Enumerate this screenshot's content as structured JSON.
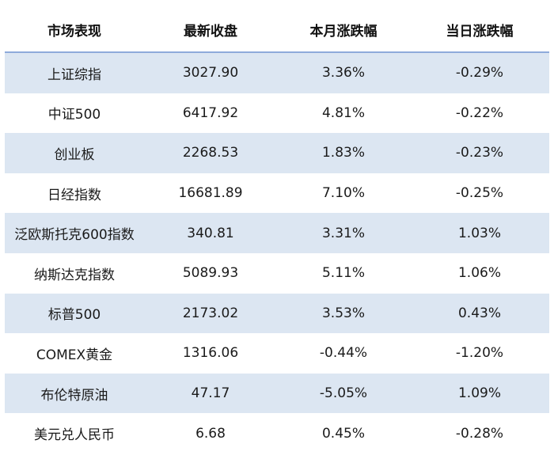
{
  "table": {
    "headers": [
      "市场表现",
      "最新收盘",
      "本月涨跌幅",
      "当日涨跌幅"
    ],
    "rows": [
      {
        "name": "上证综指",
        "close": "3027.90",
        "month_change": "3.36%",
        "day_change": "-0.29%"
      },
      {
        "name": "中证500",
        "close": "6417.92",
        "month_change": "4.81%",
        "day_change": "-0.22%"
      },
      {
        "name": "创业板",
        "close": "2268.53",
        "month_change": "1.83%",
        "day_change": "-0.23%"
      },
      {
        "name": "日经指数",
        "close": "16681.89",
        "month_change": "7.10%",
        "day_change": "-0.25%"
      },
      {
        "name": "泛欧斯托克600指数",
        "close": "340.81",
        "month_change": "3.31%",
        "day_change": "1.03%"
      },
      {
        "name": "纳斯达克指数",
        "close": "5089.93",
        "month_change": "5.11%",
        "day_change": "1.06%"
      },
      {
        "name": "标普500",
        "close": "2173.02",
        "month_change": "3.53%",
        "day_change": "0.43%"
      },
      {
        "name": "COMEX黄金",
        "close": "1316.06",
        "month_change": "-0.44%",
        "day_change": "-1.20%"
      },
      {
        "name": "布伦特原油",
        "close": "47.17",
        "month_change": "-5.05%",
        "day_change": "1.09%"
      },
      {
        "name": "美元兑人民币",
        "close": "6.68",
        "month_change": "0.45%",
        "day_change": "-0.28%"
      }
    ]
  },
  "colors": {
    "shaded_row": "#dce6f2",
    "plain_row": "#ffffff",
    "header_rule": "#8eaadb"
  }
}
